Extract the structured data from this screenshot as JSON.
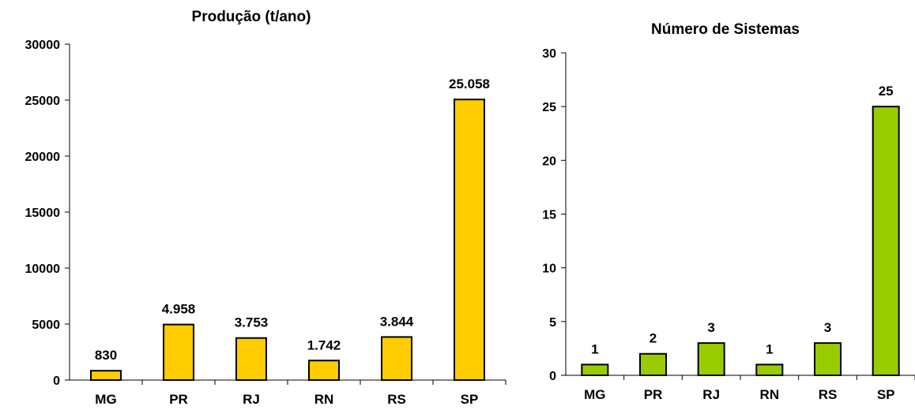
{
  "chart_data": [
    {
      "type": "bar",
      "title": "Produção (t/ano)",
      "xlabel": "",
      "ylabel": "",
      "categories": [
        "MG",
        "PR",
        "RJ",
        "RN",
        "RS",
        "SP"
      ],
      "values": [
        830,
        4958,
        3753,
        1742,
        3844,
        25058
      ],
      "data_labels": [
        "830",
        "4.958",
        "3.753",
        "1.742",
        "3.844",
        "25.058"
      ],
      "ylim": [
        0,
        30000
      ],
      "yticks": [
        0,
        5000,
        10000,
        15000,
        20000,
        25000,
        30000
      ],
      "ytick_labels": [
        "0",
        "5000",
        "10000",
        "15000",
        "20000",
        "25000",
        "30000"
      ],
      "bar_color": "#FFCC00",
      "grid": false,
      "legend": "none"
    },
    {
      "type": "bar",
      "title": "Número de Sistemas",
      "xlabel": "",
      "ylabel": "",
      "categories": [
        "MG",
        "PR",
        "RJ",
        "RN",
        "RS",
        "SP"
      ],
      "values": [
        1,
        2,
        3,
        1,
        3,
        25
      ],
      "data_labels": [
        "1",
        "2",
        "3",
        "1",
        "3",
        "25"
      ],
      "ylim": [
        0,
        30
      ],
      "yticks": [
        0,
        5,
        10,
        15,
        20,
        25,
        30
      ],
      "ytick_labels": [
        "0",
        "5",
        "10",
        "15",
        "20",
        "25",
        "30"
      ],
      "bar_color": "#99CC00",
      "grid": false,
      "legend": "none"
    }
  ]
}
